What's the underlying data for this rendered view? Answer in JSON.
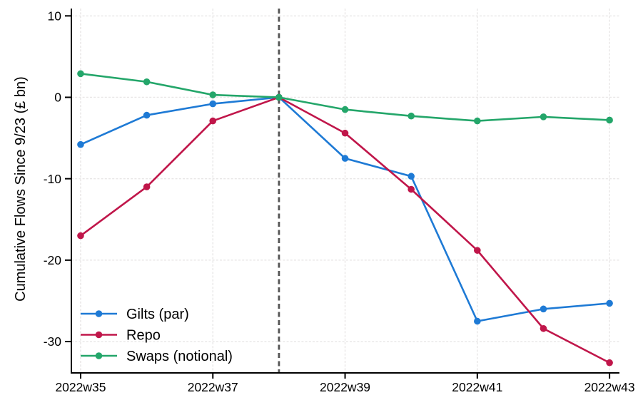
{
  "chart_data": {
    "type": "line",
    "title": "",
    "xlabel": "",
    "ylabel": "Cumulative Flows Since 9/23 (£ bn)",
    "x": [
      35,
      36,
      37,
      38,
      39,
      40,
      41,
      42,
      43
    ],
    "x_tick_values": [
      35,
      37,
      39,
      41,
      43
    ],
    "x_tick_labels": [
      "2022w35",
      "2022w37",
      "2022w39",
      "2022w41",
      "2022w43"
    ],
    "y_tick_values": [
      10,
      0,
      -10,
      -20,
      -30
    ],
    "y_tick_labels": [
      "10",
      "0",
      "-10",
      "-20",
      "-30"
    ],
    "xlim": [
      34.86,
      43.15
    ],
    "ylim": [
      -33.85,
      10.9
    ],
    "grid": true,
    "legend_position": "bottom-left",
    "reference_line": {
      "axis": "x",
      "value": 38,
      "style": "dashed",
      "color": "#555555"
    },
    "series": [
      {
        "name": "Gilts (par)",
        "color": "#1e7ad5",
        "values": [
          -5.8,
          -2.2,
          -0.8,
          0,
          -7.5,
          -9.7,
          -27.5,
          -26.0,
          -25.3
        ]
      },
      {
        "name": "Repo",
        "color": "#c0164a",
        "values": [
          -17.0,
          -11.0,
          -2.9,
          0,
          -4.4,
          -11.3,
          -18.8,
          -28.4,
          -32.6
        ]
      },
      {
        "name": "Swaps (notional)",
        "color": "#24a66a",
        "values": [
          2.9,
          1.9,
          0.3,
          0,
          -1.5,
          -2.3,
          -2.9,
          -2.4,
          -2.8
        ]
      }
    ]
  },
  "colors": {
    "background": "#ffffff",
    "axis": "#000000",
    "grid": "#e8e6e6",
    "text": "#000000"
  }
}
